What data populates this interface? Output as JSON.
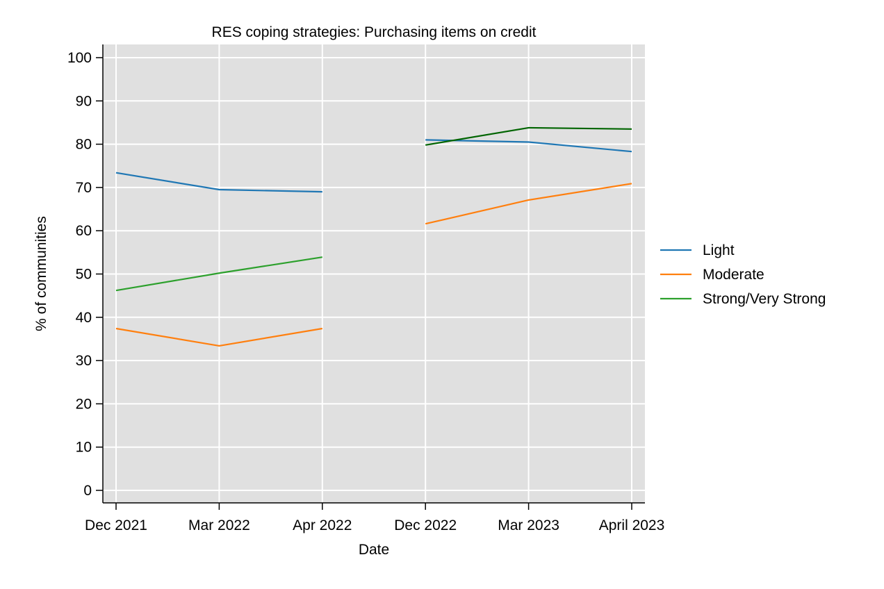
{
  "chart_data": {
    "type": "line",
    "title": "RES coping strategies: Purchasing items on credit",
    "xlabel": "Date",
    "ylabel": "% of communities",
    "categories": [
      "Dec 2021",
      "Mar 2022",
      "Apr 2022",
      "Dec 2022",
      "Mar 2023",
      "April 2023"
    ],
    "ylim": [
      0,
      100
    ],
    "yticks": [
      0,
      10,
      20,
      30,
      40,
      50,
      60,
      70,
      80,
      90,
      100
    ],
    "grid": true,
    "legend_position": "right",
    "series": [
      {
        "name": "Light",
        "color": "#1f77b4",
        "values": [
          73.4,
          69.5,
          69.0,
          null,
          null,
          null
        ]
      },
      {
        "name": "Moderate",
        "color": "#ff7f0e",
        "values": [
          37.4,
          33.4,
          37.4,
          null,
          null,
          null
        ]
      },
      {
        "name": "Strong/Very Strong",
        "color": "#2ca02c",
        "values": [
          46.2,
          50.2,
          53.9,
          null,
          null,
          null
        ]
      },
      {
        "name": "",
        "color": "#1f77b4",
        "values": [
          null,
          null,
          null,
          81.0,
          80.5,
          78.3
        ]
      },
      {
        "name": "",
        "color": "#ff7f0e",
        "values": [
          null,
          null,
          null,
          61.6,
          67.1,
          70.9
        ]
      },
      {
        "name": "",
        "color": "#006400",
        "values": [
          null,
          null,
          null,
          79.8,
          83.8,
          83.5
        ]
      }
    ]
  }
}
